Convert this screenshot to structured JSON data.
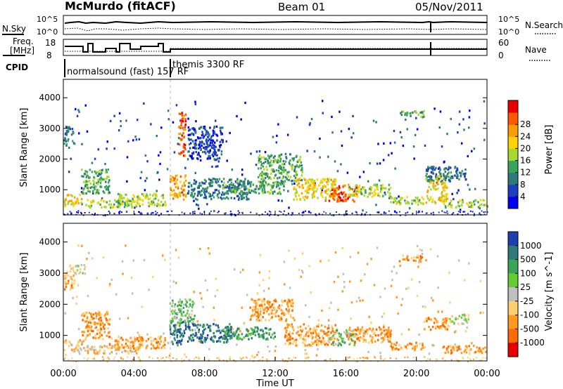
{
  "header": {
    "station": "McMurdo (fitACF)",
    "beam": "Beam 01",
    "date": "05/Nov/2011"
  },
  "top_panels": {
    "nsky_label": "N.Sky",
    "nsearch_label": "N.Search",
    "freq_label_line1": "Freq.",
    "freq_label_line2": "[MHz]",
    "nave_label": "Nave",
    "cpid_label": "CPID",
    "noise_ticks_left": [
      "10^5",
      "10^0"
    ],
    "noise_ticks_right": [
      "10^5",
      "10^0"
    ],
    "freq_ticks": [
      "18",
      "8"
    ],
    "nave_ticks": [
      "60",
      "0"
    ],
    "cpid_modes": [
      {
        "name": "normalsound (fast) 157 RF",
        "start_hour": 0
      },
      {
        "name": "themis 3300 RF",
        "start_hour": 6.2
      }
    ]
  },
  "chart_data": [
    {
      "type": "heatmap",
      "name": "power",
      "xlabel": "Time UT",
      "ylabel": "Slant Range [km]",
      "xlim": [
        0,
        24
      ],
      "ylim": [
        180,
        4600
      ],
      "x_ticks": [
        "00:00",
        "04:00",
        "08:00",
        "12:00",
        "16:00",
        "20:00",
        "00:00"
      ],
      "y_ticks": [
        1000,
        2000,
        3000,
        4000
      ],
      "colorbar_label": "Power [dB]",
      "colorbar_ticks": [
        "4",
        "8",
        "12",
        "16",
        "20",
        "24",
        "28"
      ],
      "colors": [
        "#0000ee",
        "#1e3ec0",
        "#2e7a7a",
        "#3aa45a",
        "#a8d830",
        "#ffd400",
        "#ff9c00",
        "#ff5a00",
        "#e80000"
      ],
      "clusters": [
        {
          "t0": 0.0,
          "t1": 1.0,
          "r0": 500,
          "r1": 900,
          "level": 5
        },
        {
          "t0": 0.0,
          "t1": 0.6,
          "r0": 2400,
          "r1": 3100,
          "level": 2
        },
        {
          "t0": 1.0,
          "t1": 2.6,
          "r0": 900,
          "r1": 1700,
          "level": 3
        },
        {
          "t0": 1.2,
          "t1": 4.2,
          "r0": 450,
          "r1": 700,
          "level": 4
        },
        {
          "t0": 3.0,
          "t1": 5.8,
          "r0": 500,
          "r1": 900,
          "level": 4
        },
        {
          "t0": 6.0,
          "t1": 6.9,
          "r0": 700,
          "r1": 1500,
          "level": 6
        },
        {
          "t0": 6.5,
          "t1": 6.9,
          "r0": 2100,
          "r1": 3600,
          "level": 7
        },
        {
          "t0": 7.0,
          "t1": 10.5,
          "r0": 700,
          "r1": 1400,
          "level": 2
        },
        {
          "t0": 7.0,
          "t1": 9.0,
          "r0": 2000,
          "r1": 3100,
          "level": 1
        },
        {
          "t0": 9.0,
          "t1": 12.5,
          "r0": 900,
          "r1": 1300,
          "level": 3
        },
        {
          "t0": 11.0,
          "t1": 13.5,
          "r0": 1200,
          "r1": 2200,
          "level": 3
        },
        {
          "t0": 13.0,
          "t1": 15.5,
          "r0": 700,
          "r1": 1400,
          "level": 5
        },
        {
          "t0": 15.0,
          "t1": 16.6,
          "r0": 650,
          "r1": 1200,
          "level": 7
        },
        {
          "t0": 16.0,
          "t1": 18.5,
          "r0": 800,
          "r1": 1200,
          "level": 4
        },
        {
          "t0": 18.5,
          "t1": 20.5,
          "r0": 550,
          "r1": 800,
          "level": 4
        },
        {
          "t0": 20.5,
          "t1": 21.7,
          "r0": 600,
          "r1": 1500,
          "level": 5
        },
        {
          "t0": 21.5,
          "t1": 24.0,
          "r0": 450,
          "r1": 700,
          "level": 4
        },
        {
          "t0": 20.5,
          "t1": 22.8,
          "r0": 1300,
          "r1": 1800,
          "level": 2
        },
        {
          "t0": 19.0,
          "t1": 20.5,
          "r0": 3400,
          "r1": 3600,
          "level": 3
        }
      ]
    },
    {
      "type": "heatmap",
      "name": "velocity",
      "xlabel": "Time UT",
      "ylabel": "Slant Range [km]",
      "xlim": [
        0,
        24
      ],
      "ylim": [
        180,
        4600
      ],
      "x_ticks": [
        "00:00",
        "04:00",
        "08:00",
        "12:00",
        "16:00",
        "20:00",
        "00:00"
      ],
      "y_ticks": [
        1000,
        2000,
        3000,
        4000
      ],
      "colorbar_label": "Velocity [m s^-1]",
      "colorbar_ticks": [
        "1000",
        "500",
        "100",
        "25",
        "-25",
        "-100",
        "-500",
        "-1000"
      ],
      "colors": [
        "#1f3fae",
        "#2e7a7a",
        "#3aa45a",
        "#66cc33",
        "#c0c0c0",
        "#ffcf70",
        "#ff9a1f",
        "#ff6a00",
        "#e80000"
      ],
      "clusters": [
        {
          "t0": 0.0,
          "t1": 1.1,
          "r0": 500,
          "r1": 900,
          "level": 5
        },
        {
          "t0": 0.0,
          "t1": 0.6,
          "r0": 2500,
          "r1": 3100,
          "level": 6
        },
        {
          "t0": 0.3,
          "t1": 1.2,
          "r0": 3000,
          "r1": 3300,
          "level": 4
        },
        {
          "t0": 1.0,
          "t1": 2.6,
          "r0": 900,
          "r1": 1800,
          "level": 6
        },
        {
          "t0": 1.2,
          "t1": 4.2,
          "r0": 450,
          "r1": 700,
          "level": 5
        },
        {
          "t0": 2.5,
          "t1": 5.8,
          "r0": 600,
          "r1": 1000,
          "level": 6
        },
        {
          "t0": 6.0,
          "t1": 6.9,
          "r0": 700,
          "r1": 1500,
          "level": 1
        },
        {
          "t0": 6.0,
          "t1": 7.4,
          "r0": 1400,
          "r1": 2200,
          "level": 3
        },
        {
          "t0": 7.0,
          "t1": 9.5,
          "r0": 800,
          "r1": 1400,
          "level": 1
        },
        {
          "t0": 9.0,
          "t1": 12.0,
          "r0": 900,
          "r1": 1300,
          "level": 2
        },
        {
          "t0": 10.5,
          "t1": 13.0,
          "r0": 1500,
          "r1": 2200,
          "level": 6
        },
        {
          "t0": 12.5,
          "t1": 15.5,
          "r0": 700,
          "r1": 1400,
          "level": 6
        },
        {
          "t0": 15.0,
          "t1": 16.5,
          "r0": 700,
          "r1": 1200,
          "level": 3
        },
        {
          "t0": 16.0,
          "t1": 18.5,
          "r0": 800,
          "r1": 1300,
          "level": 6
        },
        {
          "t0": 18.5,
          "t1": 20.5,
          "r0": 550,
          "r1": 800,
          "level": 6
        },
        {
          "t0": 20.5,
          "t1": 21.8,
          "r0": 1200,
          "r1": 1600,
          "level": 6
        },
        {
          "t0": 21.5,
          "t1": 24.0,
          "r0": 450,
          "r1": 700,
          "level": 6
        },
        {
          "t0": 21.8,
          "t1": 23.0,
          "r0": 1400,
          "r1": 1700,
          "level": 4
        },
        {
          "t0": 19.0,
          "t1": 20.5,
          "r0": 3400,
          "r1": 3600,
          "level": 6
        }
      ]
    }
  ]
}
